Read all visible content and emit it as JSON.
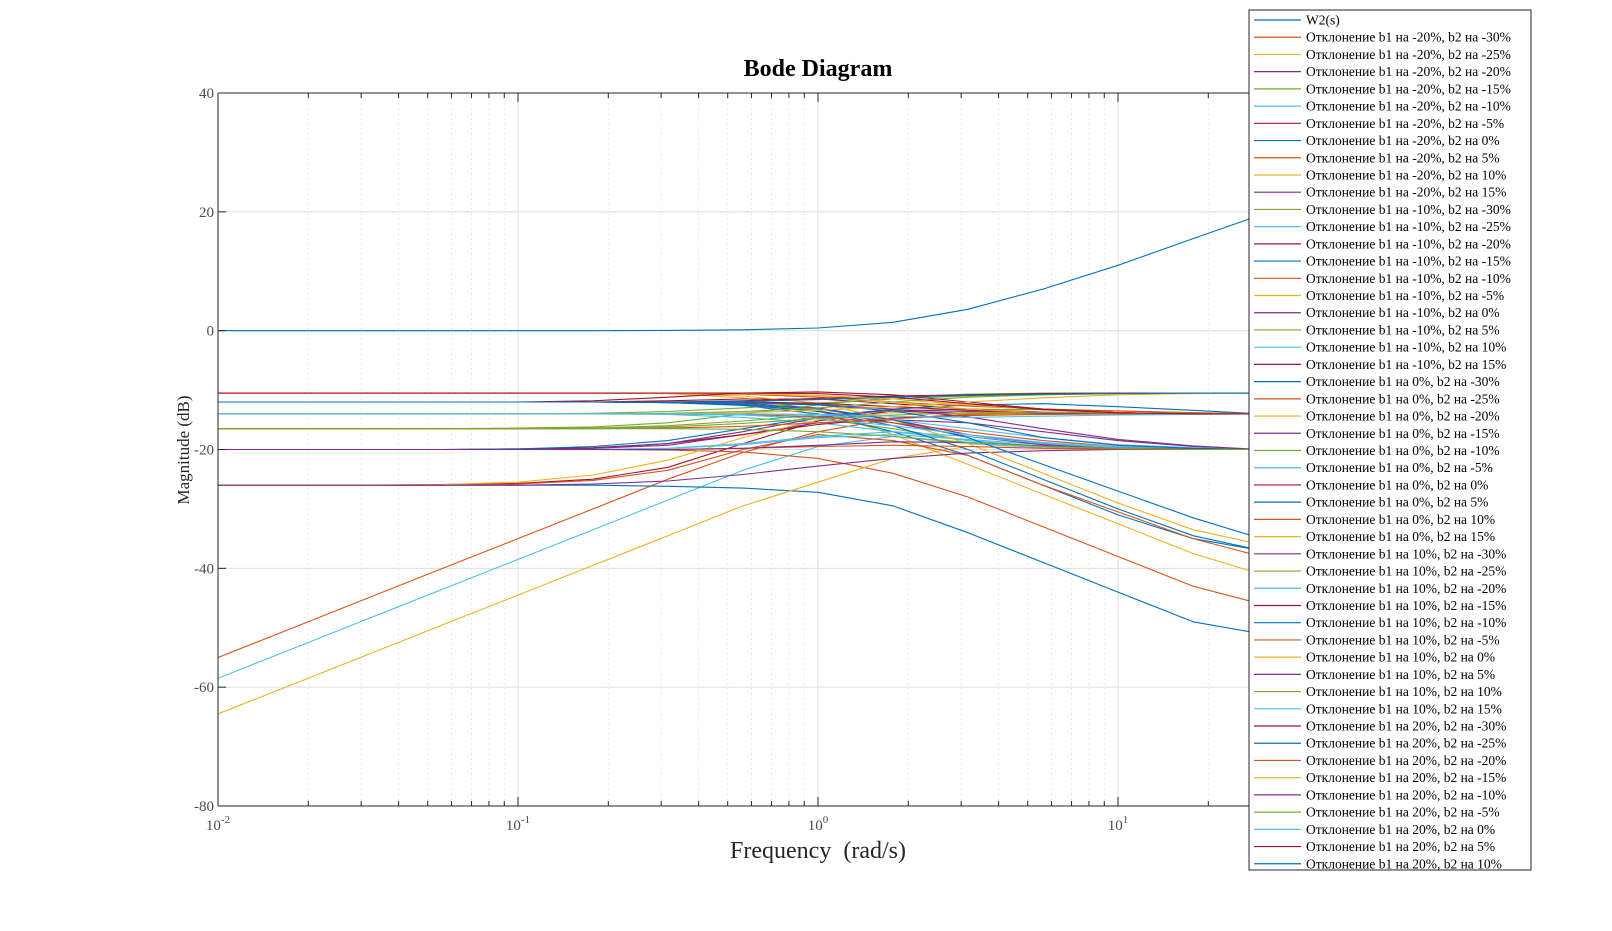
{
  "chart_data": {
    "type": "line",
    "title": "Bode Diagram",
    "xlabel": "Frequency  (rad/s)",
    "ylabel": "Magnitude (dB)",
    "xscale": "log",
    "xlim": [
      0.01,
      30
    ],
    "ylim": [
      -80,
      40
    ],
    "yticks": [
      40,
      20,
      0,
      -20,
      -40,
      -60,
      -80
    ],
    "xticks": [
      {
        "base": "10",
        "exp": "-2"
      },
      {
        "base": "10",
        "exp": "-1"
      },
      {
        "base": "10",
        "exp": "0"
      },
      {
        "base": "10",
        "exp": "1"
      }
    ],
    "grid": true,
    "legend_position": "top-right",
    "colors": [
      "#0072BD",
      "#D95319",
      "#EDB120",
      "#7E2F8E",
      "#77AC30",
      "#4DBEEE",
      "#A2142F"
    ],
    "x": [
      0.01,
      0.0178,
      0.0316,
      0.0562,
      0.1,
      0.178,
      0.316,
      0.562,
      1.0,
      1.78,
      3.16,
      5.62,
      10.0,
      17.8,
      30.0
    ],
    "series": [
      {
        "name": "W2(s)",
        "values": [
          0,
          0,
          0,
          0,
          0,
          0,
          0.05,
          0.15,
          0.45,
          1.4,
          3.6,
          7.0,
          11.0,
          15.5,
          19.5
        ]
      },
      {
        "name": "Отклонение b1 на -20%, b2 на -30%",
        "values": [
          -55,
          -50,
          -45,
          -40,
          -35,
          -30,
          -25,
          -20.5,
          -17,
          -14.8,
          -14.1,
          -14,
          -14,
          -14,
          -14
        ]
      },
      {
        "name": "Отклонение b1 на -20%, b2 на -25%",
        "values": [
          -10.5,
          -10.5,
          -10.5,
          -10.5,
          -10.5,
          -10.5,
          -10.6,
          -11.3,
          -13.5,
          -17.5,
          -22.5,
          -27.5,
          -32.5,
          -37.5,
          -41
        ]
      },
      {
        "name": "Отклонение b1 на -20%, b2 на -20%",
        "values": [
          -12,
          -12,
          -12,
          -12,
          -12,
          -12,
          -12,
          -12.2,
          -13,
          -15,
          -17.5,
          -19,
          -19.7,
          -20,
          -20
        ]
      },
      {
        "name": "Отклонение b1 на -20%, b2 на -15%",
        "values": [
          -14,
          -14,
          -14,
          -14,
          -14,
          -14,
          -14,
          -14.2,
          -14.8,
          -16.5,
          -18.5,
          -19.5,
          -19.9,
          -20,
          -20
        ]
      },
      {
        "name": "Отклонение b1 на -20%, b2 на -10%",
        "values": [
          -58.5,
          -53.5,
          -48.5,
          -43.5,
          -38.5,
          -33.5,
          -28.5,
          -23.5,
          -19.5,
          -17.8,
          -19,
          -19.7,
          -20,
          -20,
          -20
        ]
      },
      {
        "name": "Отклонение b1 на -20%, b2 на -5%",
        "values": [
          -26,
          -26,
          -26,
          -25.9,
          -25.7,
          -25,
          -23,
          -19,
          -15.2,
          -13.5,
          -13.9,
          -14,
          -14,
          -14,
          -14
        ]
      },
      {
        "name": "Отклонение b1 на -20%, b2 на 0%",
        "values": [
          -26,
          -26,
          -26,
          -26,
          -26,
          -26,
          -26.2,
          -26.5,
          -27.2,
          -29.5,
          -34,
          -39,
          -44,
          -49,
          -51
        ]
      },
      {
        "name": "Отклонение b1 на -20%, b2 на 5%",
        "values": [
          -20,
          -20,
          -20,
          -20,
          -20,
          -20,
          -20.1,
          -20.4,
          -21.5,
          -24,
          -28,
          -33,
          -38,
          -43,
          -46
        ]
      },
      {
        "name": "Отклонение b1 на -20%, b2 на 10%",
        "values": [
          -64.5,
          -59.5,
          -54.5,
          -49.5,
          -44.5,
          -39.5,
          -34.5,
          -29.5,
          -25.5,
          -21.5,
          -19.5,
          -19.8,
          -20,
          -20,
          -20
        ]
      },
      {
        "name": "Отклонение b1 на -20%, b2 на 15%",
        "values": [
          -20,
          -20,
          -20,
          -20,
          -20,
          -19.8,
          -19.3,
          -17.5,
          -15.5,
          -15,
          -15.5,
          -17,
          -18.5,
          -19.5,
          -20
        ]
      },
      {
        "name": "Отклонение b1 на -10%, b2 на -30%",
        "values": [
          -16.5,
          -16.5,
          -16.5,
          -16.5,
          -16.4,
          -16.2,
          -15.5,
          -14,
          -12.5,
          -11.2,
          -10.7,
          -10.5,
          -10.5,
          -10.5,
          -10.5
        ]
      },
      {
        "name": "Отклонение b1 на -10%, b2 на -25%",
        "values": [
          -14,
          -14,
          -14,
          -14,
          -14,
          -14,
          -14.1,
          -14.6,
          -15.5,
          -17,
          -18.5,
          -19.5,
          -19.8,
          -20,
          -20
        ]
      },
      {
        "name": "Отклонение b1 на -10%, b2 на -20%",
        "values": [
          -20,
          -20,
          -20,
          -20,
          -19.9,
          -19.7,
          -19,
          -17.5,
          -15.8,
          -14.7,
          -14.2,
          -14,
          -14,
          -14,
          -14
        ]
      },
      {
        "name": "Отклонение b1 на -10%, b2 на -15%",
        "values": [
          -12,
          -12,
          -12,
          -12,
          -12,
          -12,
          -12.1,
          -12.6,
          -14,
          -17,
          -21,
          -26,
          -31,
          -35,
          -37
        ]
      },
      {
        "name": "Отклонение b1 на -10%, b2 на -10%",
        "values": [
          -26,
          -26,
          -26,
          -26,
          -25.8,
          -25.2,
          -23.5,
          -20,
          -17.5,
          -18.5,
          -21,
          -26,
          -30.5,
          -35,
          -38
        ]
      },
      {
        "name": "Отклонение b1 на -10%, b2 на -5%",
        "values": [
          -26,
          -26,
          -26,
          -25.9,
          -25.5,
          -24.3,
          -21.8,
          -18,
          -15,
          -13.8,
          -14,
          -14,
          -14,
          -14,
          -14
        ]
      },
      {
        "name": "Отклонение b1 на -10%, b2 на 0%",
        "values": [
          -26,
          -26,
          -26,
          -26,
          -26,
          -25.8,
          -25.3,
          -24.2,
          -22.8,
          -21.5,
          -20.6,
          -20.2,
          -20,
          -20,
          -20
        ]
      },
      {
        "name": "Отклонение b1 на -10%, b2 на 5%",
        "values": [
          -16.5,
          -16.5,
          -16.5,
          -16.5,
          -16.5,
          -16.4,
          -16,
          -15.2,
          -14.2,
          -13.5,
          -13.2,
          -13.3,
          -13.5,
          -13.8,
          -14
        ]
      },
      {
        "name": "Отклонение b1 на -10%, b2 на 10%",
        "values": [
          -20,
          -20,
          -20,
          -20,
          -20,
          -20,
          -19.8,
          -19.2,
          -18,
          -17.5,
          -18.3,
          -19.2,
          -19.7,
          -19.9,
          -20
        ]
      },
      {
        "name": "Отклонение b1 на -10%, b2 на 15%",
        "values": [
          -12,
          -12,
          -12,
          -12,
          -12,
          -12,
          -11.8,
          -11.5,
          -11.5,
          -12.3,
          -13.2,
          -13.7,
          -13.9,
          -14,
          -14
        ]
      },
      {
        "name": "Отклонение b1 на 0%, b2 на -30%",
        "values": [
          -20,
          -20,
          -20,
          -20,
          -19.9,
          -19.5,
          -18.5,
          -16.5,
          -14.5,
          -13.2,
          -12.5,
          -12.3,
          -12.8,
          -13.4,
          -14
        ]
      },
      {
        "name": "Отклонение b1 на 0%, b2 на -25%",
        "values": [
          -10.5,
          -10.5,
          -10.5,
          -10.5,
          -10.5,
          -10.5,
          -10.5,
          -10.7,
          -11.2,
          -12,
          -12.7,
          -13.2,
          -13.5,
          -13.8,
          -14
        ]
      },
      {
        "name": "Отклонение b1 на 0%, b2 на -20%",
        "values": [
          -10.5,
          -10.5,
          -10.5,
          -10.5,
          -10.5,
          -10.5,
          -10.6,
          -11,
          -12.2,
          -15,
          -19,
          -24,
          -29,
          -33.5,
          -36
        ]
      },
      {
        "name": "Отклонение b1 на 0%, b2 на -15%",
        "values": [
          -12,
          -12,
          -12,
          -12,
          -12,
          -12,
          -12.1,
          -12.5,
          -13.5,
          -15.5,
          -17.8,
          -19.2,
          -19.7,
          -20,
          -20
        ]
      },
      {
        "name": "Отклонение b1 на 0%, b2 на -10%",
        "values": [
          -14,
          -14,
          -14,
          -14,
          -14,
          -13.9,
          -13.6,
          -13,
          -12.2,
          -11.5,
          -11,
          -10.7,
          -10.5,
          -10.5,
          -10.5
        ]
      },
      {
        "name": "Отклонение b1 на 0%, b2 на -5%",
        "values": [
          -20,
          -20,
          -20,
          -20,
          -20,
          -20,
          -19.8,
          -19,
          -17.8,
          -17,
          -17.8,
          -19,
          -19.7,
          -19.9,
          -20
        ]
      },
      {
        "name": "Отклонение b1 на 0%, b2 на 0%",
        "values": [
          -12,
          -12,
          -12,
          -12,
          -12,
          -12,
          -12,
          -12,
          -12.2,
          -12.8,
          -13.4,
          -13.8,
          -13.9,
          -14,
          -14
        ]
      },
      {
        "name": "Отклонение b1 на 0%, b2 на 5%",
        "values": [
          -12,
          -12,
          -12,
          -12,
          -12,
          -12,
          -12.1,
          -12.5,
          -13.6,
          -16,
          -20,
          -25,
          -30,
          -34.5,
          -37
        ]
      },
      {
        "name": "Отклонение b1 на 0%, b2 на 10%",
        "values": [
          -20,
          -20,
          -20,
          -20,
          -20,
          -20,
          -20,
          -19.8,
          -19.5,
          -19.3,
          -19.5,
          -19.8,
          -19.9,
          -20,
          -20
        ]
      },
      {
        "name": "Отклонение b1 на 0%, b2 на 15%",
        "values": [
          -10.5,
          -10.5,
          -10.5,
          -10.5,
          -10.5,
          -10.5,
          -10.5,
          -10.6,
          -11,
          -12,
          -13.2,
          -13.8,
          -14,
          -14,
          -14
        ]
      },
      {
        "name": "Отклонение b1 на 10%, b2 на -30%",
        "values": [
          -20,
          -20,
          -20,
          -20,
          -20,
          -19.8,
          -19,
          -17,
          -14.7,
          -13.3,
          -13.6,
          -13.9,
          -14,
          -14,
          -14
        ]
      },
      {
        "name": "Отклонение b1 на 10%, b2 на -25%",
        "values": [
          -16.5,
          -16.5,
          -16.5,
          -16.5,
          -16.5,
          -16.4,
          -16.2,
          -15.6,
          -14.8,
          -14.2,
          -13.8,
          -13.7,
          -13.8,
          -13.9,
          -14
        ]
      },
      {
        "name": "Отклонение b1 на 10%, b2 на -20%",
        "values": [
          -14,
          -14,
          -14,
          -14,
          -14,
          -14,
          -14,
          -14,
          -14.2,
          -15,
          -16.5,
          -18,
          -19.2,
          -19.7,
          -20
        ]
      },
      {
        "name": "Отклонение b1 на 10%, b2 на -15%",
        "values": [
          -12,
          -12,
          -12,
          -12,
          -12,
          -12,
          -12,
          -11.8,
          -11.4,
          -11,
          -10.8,
          -10.6,
          -10.5,
          -10.5,
          -10.5
        ]
      },
      {
        "name": "Отклонение b1 на 10%, b2 на -10%",
        "values": [
          -12,
          -12,
          -12,
          -12,
          -12,
          -12,
          -12.1,
          -12.4,
          -13.2,
          -15,
          -18,
          -22.5,
          -27,
          -31.5,
          -35
        ]
      },
      {
        "name": "Отклонение b1 на 10%, b2 на -5%",
        "values": [
          -14,
          -14,
          -14,
          -14,
          -14,
          -14,
          -14,
          -14.1,
          -14.5,
          -15.5,
          -17,
          -18.5,
          -19.5,
          -19.9,
          -20
        ]
      },
      {
        "name": "Отклонение b1 на 10%, b2 на 0%",
        "values": [
          -10.5,
          -10.5,
          -10.5,
          -10.5,
          -10.5,
          -10.5,
          -10.5,
          -10.6,
          -10.9,
          -11.5,
          -12.5,
          -13.3,
          -13.8,
          -14,
          -14
        ]
      },
      {
        "name": "Отклонение b1 на 10%, b2 на 5%",
        "values": [
          -12,
          -12,
          -12,
          -12,
          -12,
          -12,
          -12,
          -12.1,
          -12.4,
          -13.2,
          -14.5,
          -16.5,
          -18.3,
          -19.4,
          -20
        ]
      },
      {
        "name": "Отклонение b1 на 10%, b2 на 10%",
        "values": [
          -14,
          -14,
          -14,
          -14,
          -14,
          -14,
          -13.9,
          -13.6,
          -13,
          -12,
          -11.2,
          -10.8,
          -10.6,
          -10.5,
          -10.5
        ]
      },
      {
        "name": "Отклонение b1 на 10%, b2 на 15%",
        "values": [
          -14,
          -14,
          -14,
          -14,
          -14,
          -14,
          -14,
          -14.2,
          -14.8,
          -16,
          -17.5,
          -18.8,
          -19.5,
          -19.8,
          -20
        ]
      },
      {
        "name": "Отклонение b1 на 20%, b2 на -30%",
        "values": [
          -12,
          -12,
          -12,
          -12,
          -12,
          -11.8,
          -11.2,
          -10.5,
          -10.3,
          -10.8,
          -12,
          -13.2,
          -13.8,
          -14,
          -14
        ]
      },
      {
        "name": "Отклонение b1 на 20%, b2 на -25%",
        "values": [
          -12,
          -12,
          -12,
          -12,
          -12,
          -12,
          -12,
          -12.1,
          -12.5,
          -13.5,
          -15.5,
          -18,
          -19.3,
          -19.8,
          -20
        ]
      },
      {
        "name": "Отклонение b1 на 20%, b2 на -20%",
        "values": [
          -16.5,
          -16.5,
          -16.5,
          -16.5,
          -16.5,
          -16.5,
          -16.4,
          -16.1,
          -15.5,
          -14.8,
          -14.3,
          -14.1,
          -14,
          -14,
          -14
        ]
      },
      {
        "name": "Отклонение b1 на 20%, b2 на -15%",
        "values": [
          -14,
          -14,
          -14,
          -14,
          -14,
          -14,
          -14,
          -13.8,
          -13.4,
          -12.8,
          -12,
          -11.3,
          -10.8,
          -10.6,
          -10.5
        ]
      },
      {
        "name": "Отклонение b1 на 20%, b2 на -10%",
        "values": [
          -20,
          -20,
          -20,
          -20,
          -20,
          -20,
          -20,
          -19.8,
          -19.3,
          -18.7,
          -18.8,
          -19.4,
          -19.8,
          -19.9,
          -20
        ]
      },
      {
        "name": "Отклонение b1 на 20%, b2 на -5%",
        "values": [
          -16.5,
          -16.5,
          -16.5,
          -16.5,
          -16.5,
          -16.5,
          -16.5,
          -16.6,
          -17,
          -17.8,
          -18.8,
          -19.5,
          -19.8,
          -20,
          -20
        ]
      },
      {
        "name": "Отклонение b1 на 20%, b2 на 0%",
        "values": [
          -14,
          -14,
          -14,
          -14,
          -14,
          -14,
          -14,
          -14,
          -14.1,
          -14.4,
          -14.6,
          -14.4,
          -14.2,
          -14.1,
          -14
        ]
      },
      {
        "name": "Отклонение b1 на 20%, b2 на 5%",
        "values": [
          -10.5,
          -10.5,
          -10.5,
          -10.5,
          -10.5,
          -10.5,
          -10.5,
          -10.5,
          -10.6,
          -11.2,
          -12.3,
          -13.3,
          -13.8,
          -14,
          -14
        ]
      },
      {
        "name": "Отклонение b1 на 20%, b2 на 10%",
        "values": [
          -12,
          -12,
          -12,
          -12,
          -12,
          -12,
          -12,
          -11.9,
          -11.6,
          -11.2,
          -10.9,
          -10.7,
          -10.6,
          -10.5,
          -10.5
        ]
      }
    ]
  }
}
